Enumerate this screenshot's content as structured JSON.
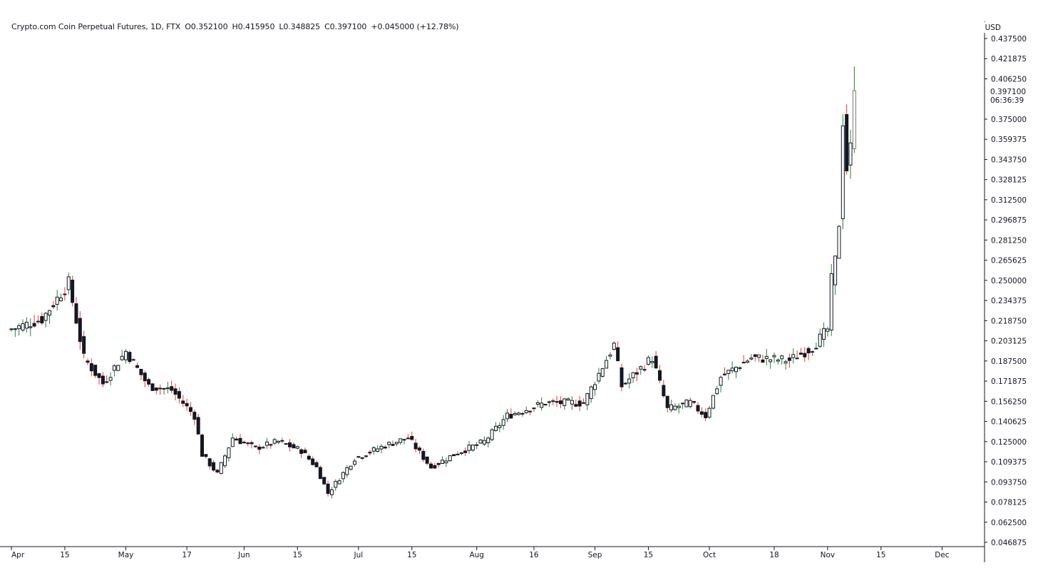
{
  "legend": {
    "symbol": "Crypto.com Coin Perpetual Futures, 1D, FTX",
    "open": "O0.352100",
    "high": "H0.415950",
    "low": "L0.348825",
    "close": "C0.397100",
    "change": "+0.045000 (+12.78%)"
  },
  "colors": {
    "up": "#26a69a",
    "down": "#ef5350",
    "wick_up": "#2e7d32",
    "wick_down": "#e53935",
    "body_up": "#ffffff",
    "body_down": "#131722",
    "axis": "#131722",
    "last": "#757575"
  },
  "chart_data": {
    "type": "candlestick",
    "title": "Crypto.com Coin Perpetual Futures, 1D, FTX",
    "currency": "USD",
    "ylim": [
      0.046875,
      0.4375
    ],
    "y_ticks": [
      "0.437500",
      "0.421875",
      "0.406250",
      "0.375000",
      "0.359375",
      "0.343750",
      "0.328125",
      "0.312500",
      "0.296875",
      "0.281250",
      "0.265625",
      "0.250000",
      "0.234375",
      "0.218750",
      "0.203125",
      "0.187500",
      "0.171875",
      "0.156250",
      "0.140625",
      "0.125000",
      "0.109375",
      "0.093750",
      "0.078125",
      "0.062500",
      "0.046875"
    ],
    "last_price": "0.397100",
    "countdown": "06:36:39",
    "x_ticks": [
      {
        "label": "Apr",
        "day": 0
      },
      {
        "label": "15",
        "day": 14
      },
      {
        "label": "May",
        "day": 30
      },
      {
        "label": "17",
        "day": 46
      },
      {
        "label": "Jun",
        "day": 61
      },
      {
        "label": "15",
        "day": 75
      },
      {
        "label": "Jul",
        "day": 91
      },
      {
        "label": "15",
        "day": 105
      },
      {
        "label": "Aug",
        "day": 122
      },
      {
        "label": "16",
        "day": 137
      },
      {
        "label": "Sep",
        "day": 153
      },
      {
        "label": "15",
        "day": 167
      },
      {
        "label": "Oct",
        "day": 183
      },
      {
        "label": "18",
        "day": 200
      },
      {
        "label": "Nov",
        "day": 214
      },
      {
        "label": "15",
        "day": 228
      },
      {
        "label": "Dec",
        "day": 244
      }
    ],
    "x_start_date": "2021-04-01",
    "key_closes": [
      {
        "day": 0,
        "close": 0.212
      },
      {
        "day": 8,
        "close": 0.22
      },
      {
        "day": 15,
        "close": 0.248
      },
      {
        "day": 19,
        "close": 0.19
      },
      {
        "day": 24,
        "close": 0.17
      },
      {
        "day": 30,
        "close": 0.195
      },
      {
        "day": 36,
        "close": 0.168
      },
      {
        "day": 42,
        "close": 0.165
      },
      {
        "day": 48,
        "close": 0.145
      },
      {
        "day": 50,
        "close": 0.115
      },
      {
        "day": 54,
        "close": 0.1
      },
      {
        "day": 58,
        "close": 0.128
      },
      {
        "day": 64,
        "close": 0.12
      },
      {
        "day": 70,
        "close": 0.125
      },
      {
        "day": 76,
        "close": 0.118
      },
      {
        "day": 80,
        "close": 0.105
      },
      {
        "day": 83,
        "close": 0.085
      },
      {
        "day": 90,
        "close": 0.112
      },
      {
        "day": 98,
        "close": 0.122
      },
      {
        "day": 104,
        "close": 0.128
      },
      {
        "day": 110,
        "close": 0.105
      },
      {
        "day": 116,
        "close": 0.115
      },
      {
        "day": 124,
        "close": 0.125
      },
      {
        "day": 130,
        "close": 0.145
      },
      {
        "day": 140,
        "close": 0.155
      },
      {
        "day": 150,
        "close": 0.155
      },
      {
        "day": 158,
        "close": 0.2
      },
      {
        "day": 160,
        "close": 0.168
      },
      {
        "day": 168,
        "close": 0.19
      },
      {
        "day": 172,
        "close": 0.15
      },
      {
        "day": 178,
        "close": 0.155
      },
      {
        "day": 182,
        "close": 0.145
      },
      {
        "day": 186,
        "close": 0.175
      },
      {
        "day": 194,
        "close": 0.19
      },
      {
        "day": 204,
        "close": 0.188
      },
      {
        "day": 210,
        "close": 0.198
      },
      {
        "day": 214,
        "close": 0.212
      },
      {
        "day": 215,
        "close": 0.25
      },
      {
        "day": 216,
        "close": 0.265
      },
      {
        "day": 217,
        "close": 0.295
      },
      {
        "day": 218,
        "close": 0.375
      },
      {
        "day": 219,
        "close": 0.337
      },
      {
        "day": 220,
        "close": 0.352
      },
      {
        "day": 221,
        "close": 0.397
      }
    ],
    "last_candle": {
      "open": 0.3521,
      "high": 0.41595,
      "low": 0.348825,
      "close": 0.3971
    }
  }
}
